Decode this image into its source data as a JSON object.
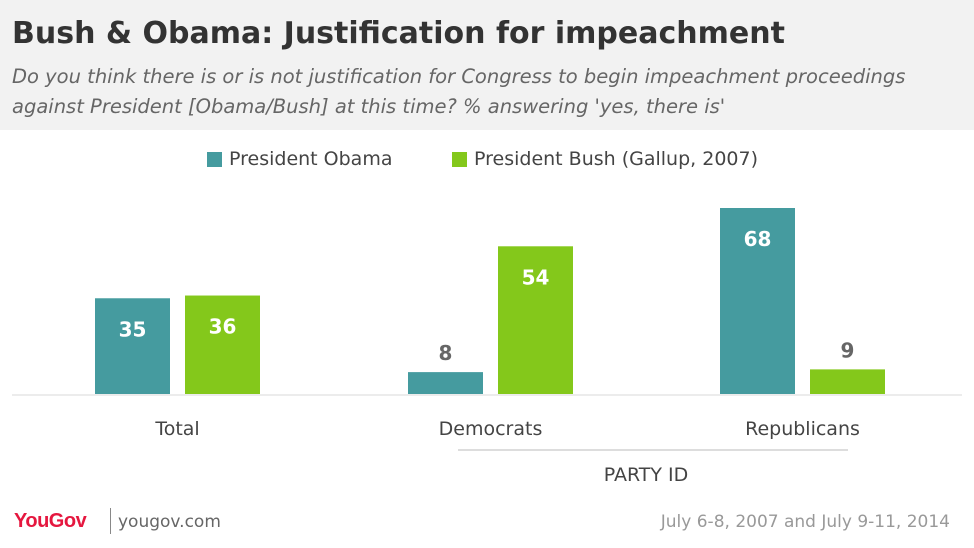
{
  "header": {
    "title": "Bush & Obama: Justification for impeachment",
    "subtitle": "Do you think there is or is not justification for Congress to begin impeachment proceedings against President [Obama/Bush] at this time? % answering 'yes, there is'"
  },
  "colors": {
    "obama": "#459b9f",
    "bush": "#84c81b",
    "header_bg": "#f2f2f2",
    "brand": "#e5173f"
  },
  "chart_data": {
    "type": "bar",
    "title": "Bush & Obama: Justification for impeachment",
    "categories": [
      "Total",
      "Democrats",
      "Republicans"
    ],
    "series": [
      {
        "name": "President Obama",
        "values": [
          35,
          8,
          68
        ]
      },
      {
        "name": "President Bush (Gallup, 2007)",
        "values": [
          36,
          54,
          9
        ]
      }
    ],
    "group_label": "PARTY ID",
    "group_members": [
      "Democrats",
      "Republicans"
    ],
    "ylim": [
      0,
      70
    ],
    "grid": false,
    "legend_position": "top"
  },
  "footer": {
    "logo": "YouGov",
    "site": "yougov.com",
    "date": "July 6-8, 2007 and July 9-11, 2014"
  }
}
